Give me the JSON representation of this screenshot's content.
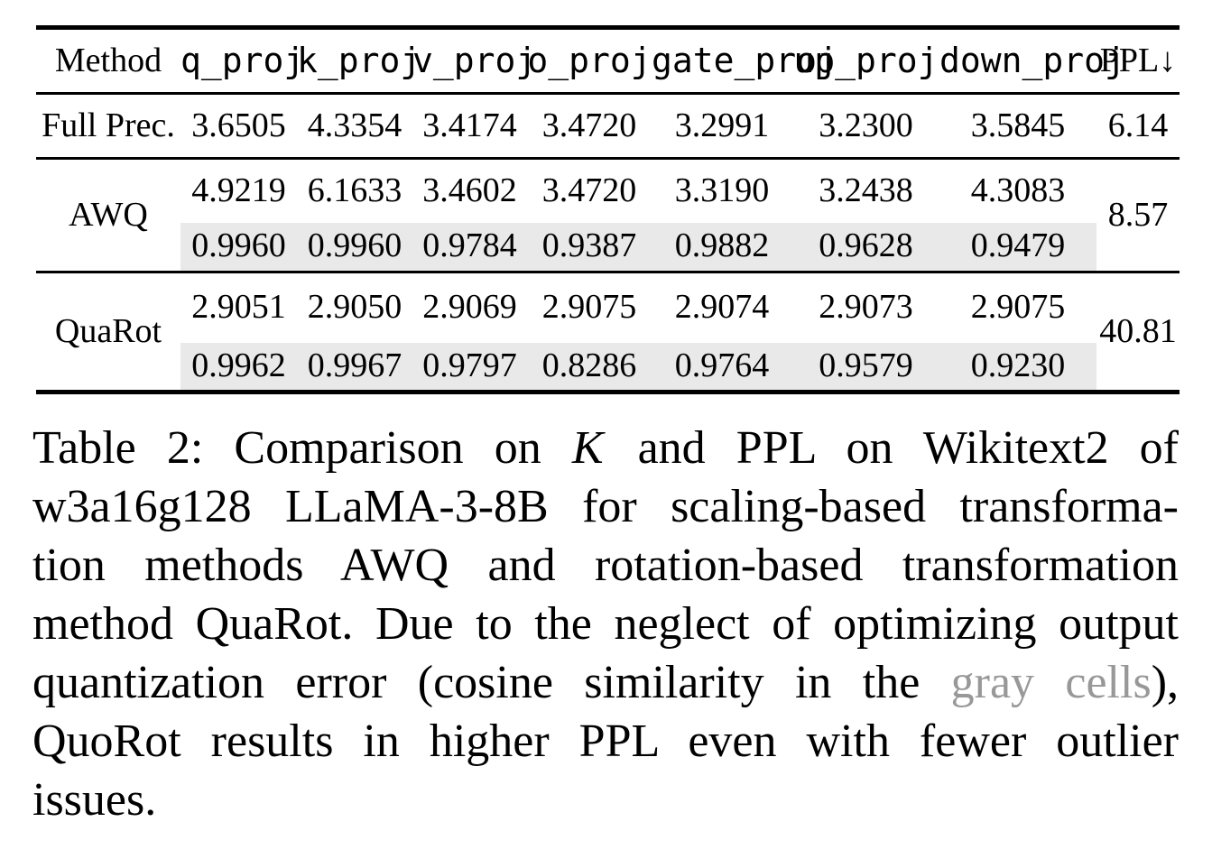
{
  "colors": {
    "gray_cell_bg": "#e9e9e9",
    "gray_text": "#989898",
    "rule_color": "#000000"
  },
  "table": {
    "columns": [
      "Method",
      "q_proj",
      "k_proj",
      "v_proj",
      "o_proj",
      "gate_proj",
      "up_proj",
      "down_proj",
      "PPL↓"
    ],
    "rows": [
      {
        "method": "Full Prec.",
        "values": [
          "3.6505",
          "4.3354",
          "3.4174",
          "3.4720",
          "3.2991",
          "3.2300",
          "3.5845"
        ],
        "ppl": "6.14"
      },
      {
        "method": "AWQ",
        "values": [
          "4.9219",
          "6.1633",
          "3.4602",
          "3.4720",
          "3.3190",
          "3.2438",
          "4.3083"
        ],
        "cosine": [
          "0.9960",
          "0.9960",
          "0.9784",
          "0.9387",
          "0.9882",
          "0.9628",
          "0.9479"
        ],
        "ppl": "8.57"
      },
      {
        "method": "QuaRot",
        "values": [
          "2.9051",
          "2.9050",
          "2.9069",
          "2.9075",
          "2.9074",
          "2.9073",
          "2.9075"
        ],
        "cosine": [
          "0.9962",
          "0.9967",
          "0.9797",
          "0.8286",
          "0.9764",
          "0.9579",
          "0.9230"
        ],
        "ppl": "40.81"
      }
    ]
  },
  "caption": {
    "lines": [
      {
        "segments": [
          {
            "text": "Table 2:  Comparison on "
          },
          {
            "text": "K"
          },
          {
            "text": " and PPL on Wikitext2 of"
          }
        ]
      },
      {
        "segments": [
          {
            "text": "w3a16g128 LLaMA-3-8B for scaling-based transforma-"
          }
        ]
      },
      {
        "segments": [
          {
            "text": "tion methods AWQ and rotation-based transformation"
          }
        ]
      },
      {
        "segments": [
          {
            "text": "method QuaRot. Due to the neglect of optimizing output"
          }
        ]
      },
      {
        "segments": [
          {
            "text": "quantization error (cosine similarity in the "
          },
          {
            "text": "gray cells"
          },
          {
            "text": "),"
          }
        ]
      },
      {
        "segments": [
          {
            "text": "QuoRot results in higher PPL even with fewer outlier"
          }
        ]
      },
      {
        "segments": [
          {
            "text": "issues."
          }
        ]
      }
    ]
  }
}
